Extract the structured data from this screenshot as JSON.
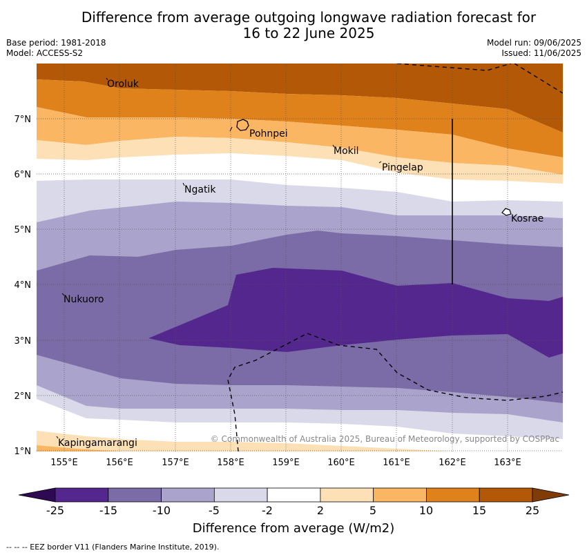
{
  "header": {
    "title_line1": "Difference from average outgoing longwave radiation forecast for",
    "title_line2": "16 to 22 June 2025",
    "base_period": "Base period: 1981-2018",
    "model": "Model: ACCESS-S2",
    "model_run": "Model run: 09/06/2025",
    "issued": "Issued: 11/06/2025"
  },
  "map": {
    "x_ticks": [
      "155°E",
      "156°E",
      "157°E",
      "158°E",
      "159°E",
      "160°E",
      "161°E",
      "162°E",
      "163°E"
    ],
    "y_ticks": [
      "7°N",
      "6°N",
      "5°N",
      "4°N",
      "3°N",
      "2°N",
      "1°N"
    ],
    "places": {
      "oroluk": "Oroluk",
      "pohnpei": "Pohnpei",
      "mokil": "Mokil",
      "pingelap": "Pingelap",
      "ngatik": "Ngatik",
      "kosrae": "Kosrae",
      "nukuoro": "Nukuoro",
      "kapingamarangi": "Kapingamarangi"
    },
    "copyright": "© Commonwealth of Australia 2025, Bureau of Meteorology, supported by COSPPac"
  },
  "colorbar": {
    "labels": [
      "-25",
      "-15",
      "-10",
      "-5",
      "-2",
      "2",
      "5",
      "10",
      "15",
      "25"
    ],
    "colors": [
      "#54278f",
      "#7b6ba6",
      "#aaa3cc",
      "#d9d9ea",
      "#ffffff",
      "#fde0b6",
      "#fbb664",
      "#e0821c",
      "#b35806"
    ],
    "under_color": "#2d0a52",
    "over_color": "#7f3b08",
    "title": "Difference from average (W/m2)"
  },
  "footer": {
    "eez": "--  --  -- EEZ border V11 (Flanders Marine Institute, 2019)."
  }
}
